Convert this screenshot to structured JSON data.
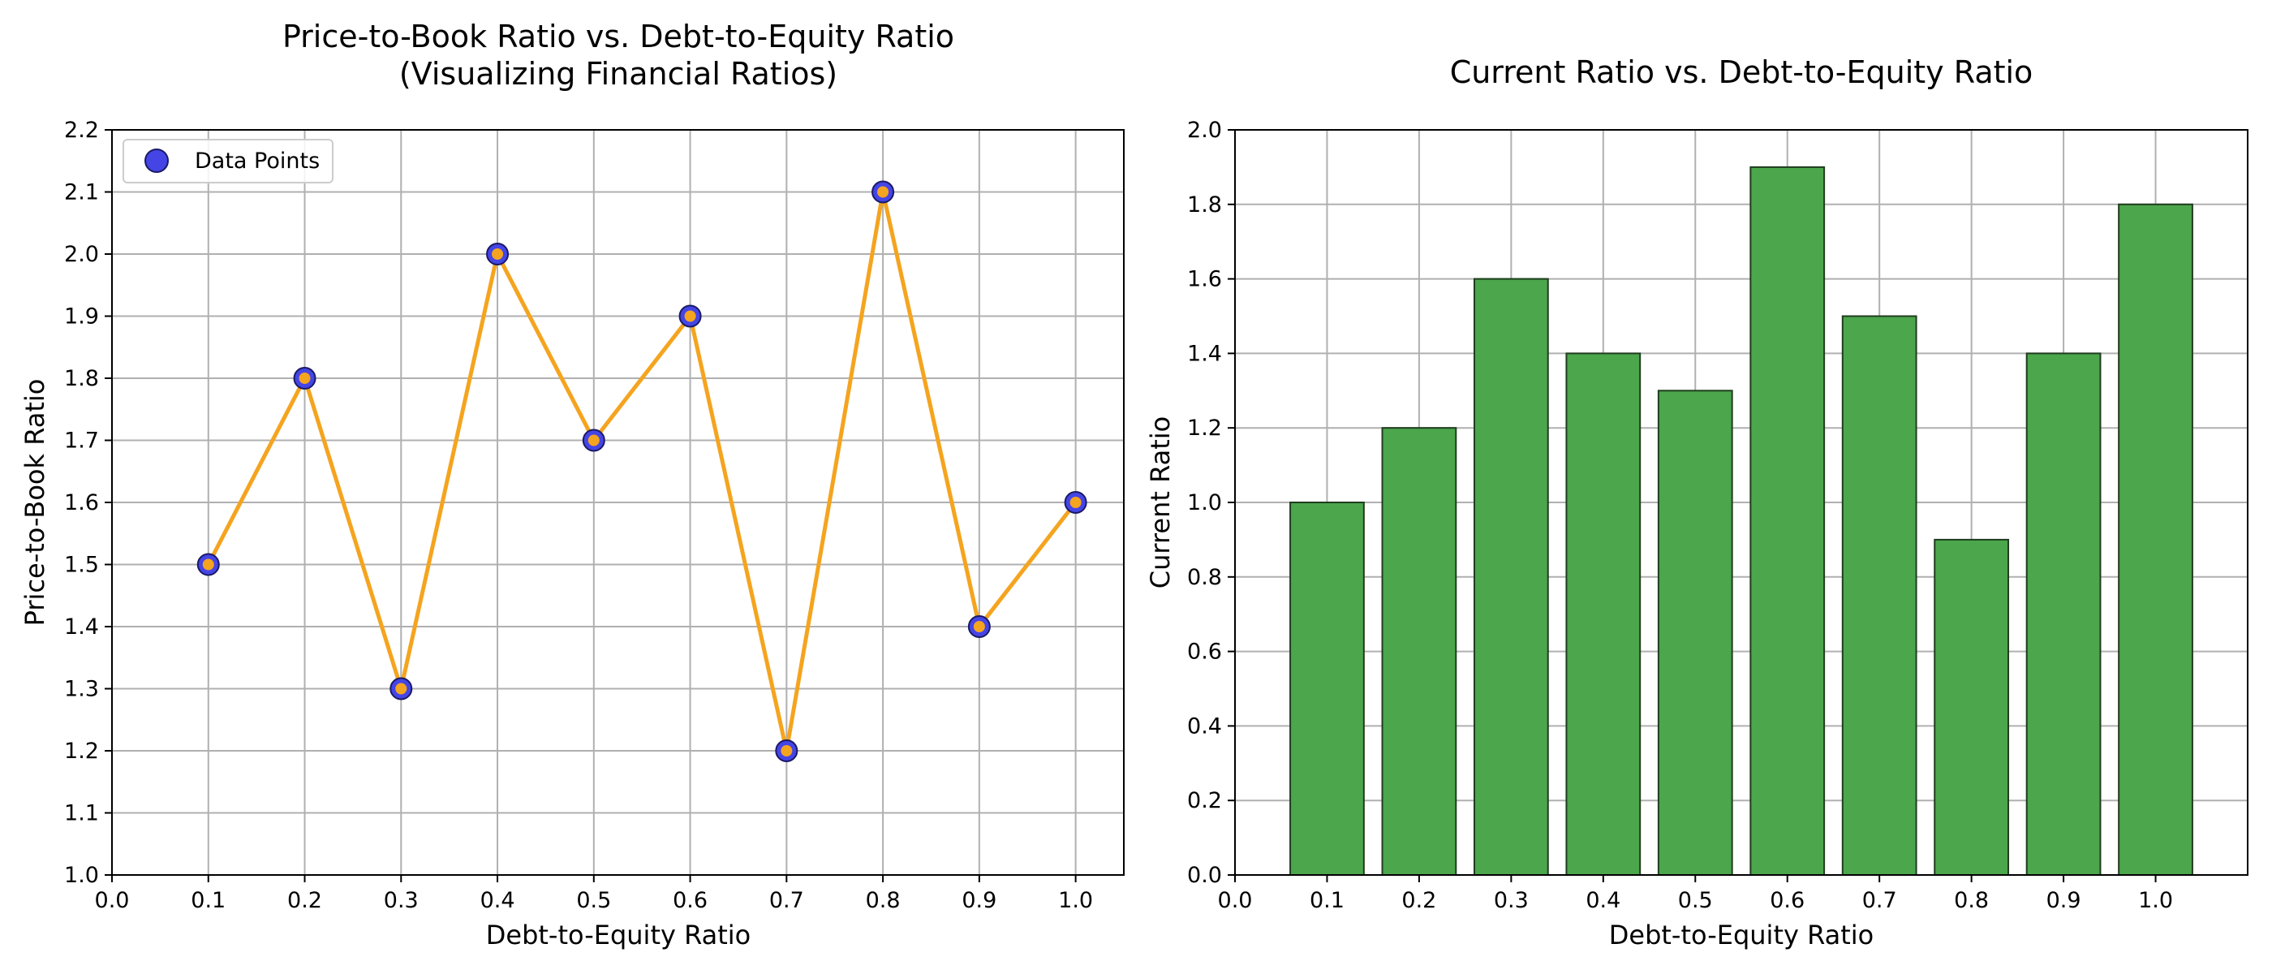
{
  "chart_data": [
    {
      "type": "line",
      "title": "Price-to-Book Ratio vs. Debt-to-Equity Ratio",
      "subtitle": "(Visualizing Financial Ratios)",
      "xlabel": "Debt-to-Equity Ratio",
      "ylabel": "Price-to-Book Ratio",
      "xlim": [
        0.0,
        1.05
      ],
      "ylim": [
        1.0,
        2.2
      ],
      "xticks": [
        "0.0",
        "0.1",
        "0.2",
        "0.3",
        "0.4",
        "0.5",
        "0.6",
        "0.7",
        "0.8",
        "0.9",
        "1.0"
      ],
      "yticks": [
        "1.0",
        "1.1",
        "1.2",
        "1.3",
        "1.4",
        "1.5",
        "1.6",
        "1.7",
        "1.8",
        "1.9",
        "2.0",
        "2.1",
        "2.2"
      ],
      "grid": true,
      "legend": {
        "placement": "top-left",
        "entries": [
          "Data Points"
        ]
      },
      "series": [
        {
          "name": "Data Points",
          "x": [
            0.1,
            0.2,
            0.3,
            0.4,
            0.5,
            0.6,
            0.7,
            0.8,
            0.9,
            1.0
          ],
          "y": [
            1.5,
            1.8,
            1.3,
            2.0,
            1.7,
            1.9,
            1.2,
            2.1,
            1.4,
            1.6
          ],
          "marker_color": "#4545e6",
          "marker_edge": "#1a1a66",
          "line_color": "#f5a41f"
        }
      ]
    },
    {
      "type": "bar",
      "title": "Current Ratio vs. Debt-to-Equity Ratio",
      "xlabel": "Debt-to-Equity Ratio",
      "ylabel": "Current Ratio",
      "xlim": [
        0.0,
        1.1
      ],
      "ylim": [
        0.0,
        2.0
      ],
      "xticks": [
        "0.0",
        "0.1",
        "0.2",
        "0.3",
        "0.4",
        "0.5",
        "0.6",
        "0.7",
        "0.8",
        "0.9",
        "1.0"
      ],
      "yticks": [
        "0.0",
        "0.2",
        "0.4",
        "0.6",
        "0.8",
        "1.0",
        "1.2",
        "1.4",
        "1.6",
        "1.8",
        "2.0"
      ],
      "grid": true,
      "x": [
        0.1,
        0.2,
        0.3,
        0.4,
        0.5,
        0.6,
        0.7,
        0.8,
        0.9,
        1.0
      ],
      "values": [
        1.0,
        1.2,
        1.6,
        1.4,
        1.3,
        1.9,
        1.5,
        0.9,
        1.4,
        1.8
      ],
      "bar_width": 0.08,
      "bar_color": "#4ca64c",
      "bar_edge": "#1f3d1f"
    }
  ]
}
